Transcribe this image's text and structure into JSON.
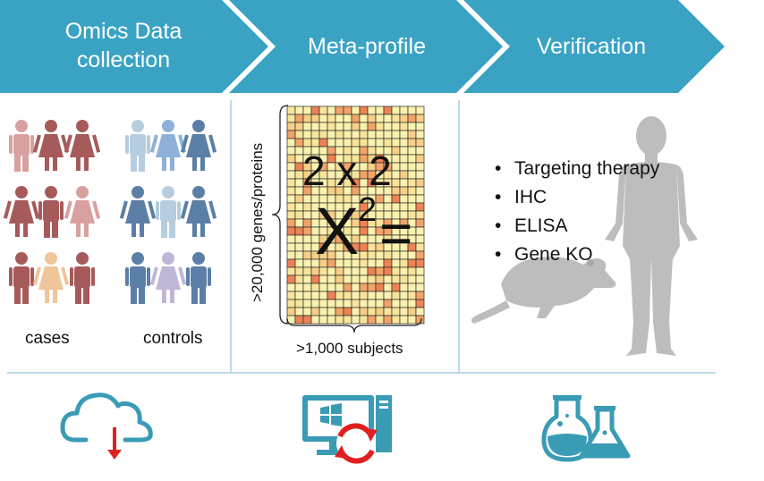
{
  "header": {
    "step1": "Omics Data collection",
    "step1_line1": "Omics Data",
    "step1_line2": "collection",
    "step2": "Meta-profile",
    "step3": "Verification"
  },
  "colors": {
    "header_blue": "#3aa3c4",
    "divider": "#a7cfe0",
    "case_red": "#a65a5a",
    "control_blue": "#5b7fa6",
    "icon_teal": "#3a9bb5",
    "arrow_red": "#e02020",
    "silhouette_gray": "#bdbdbd"
  },
  "panel1": {
    "cases_label": "cases",
    "controls_label": "controls"
  },
  "panel2": {
    "y_label": ">20,000 genes/proteins",
    "x_label": ">1,000 subjects",
    "table_text": "2 x 2",
    "chi_text": "X",
    "chi_sup": "2",
    "equals": "="
  },
  "panel3": {
    "methods": [
      "Targeting therapy",
      "IHC",
      "ELISA",
      "Gene KO"
    ]
  },
  "icons": [
    "cloud-download-icon",
    "computer-sync-icon",
    "lab-flask-icon"
  ]
}
